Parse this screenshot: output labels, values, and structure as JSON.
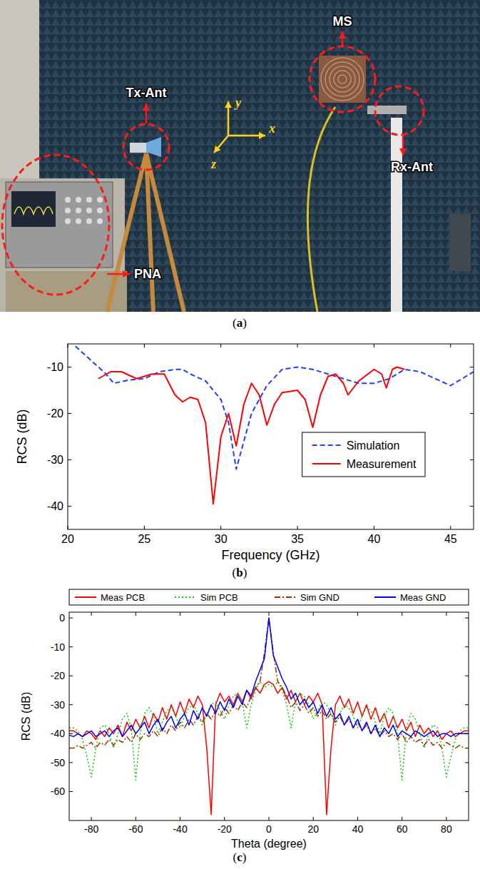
{
  "photo": {
    "labels": [
      "Tx-Ant",
      "MS",
      "Rx-Ant",
      "PNA"
    ],
    "axes": [
      "y",
      "z",
      "x"
    ],
    "panel": "(a)"
  },
  "chart_data": [
    {
      "type": "line",
      "panel": "(b)",
      "x_label": "Frequency (GHz)",
      "y_label": "RCS (dB)",
      "xlim": [
        20,
        46.5
      ],
      "xticks": [
        20,
        25,
        30,
        35,
        40,
        45
      ],
      "ylim": [
        -45,
        -5
      ],
      "yticks": [
        -40,
        -30,
        -20,
        -10
      ],
      "grid": false,
      "legend": "lower right",
      "series": [
        {
          "name": "Simulation",
          "color": "#1f3fff",
          "line_style": "dashed",
          "x": [
            20.5,
            21.5,
            22.5,
            23,
            24,
            25,
            26,
            27,
            27.5,
            28,
            29,
            30,
            30.5,
            31,
            31.5,
            32,
            33,
            34,
            35,
            36,
            37,
            38,
            39,
            40,
            41,
            42,
            43,
            44,
            45,
            46.5
          ],
          "values": [
            -5.5,
            -8.5,
            -11.5,
            -13.5,
            -12.8,
            -12.5,
            -11,
            -10.5,
            -10.5,
            -11.5,
            -13,
            -17,
            -22,
            -32,
            -26,
            -20,
            -14,
            -10.5,
            -10,
            -10.5,
            -11.5,
            -12.5,
            -13.5,
            -13.5,
            -12.5,
            -10.5,
            -11,
            -12.5,
            -14,
            -11
          ]
        },
        {
          "name": "Measurement",
          "color": "#ff0000",
          "line_style": "solid",
          "x": [
            22,
            22.8,
            23.5,
            24.5,
            25.5,
            26.3,
            27,
            27.5,
            28,
            28.5,
            29,
            29.5,
            30,
            30.5,
            31,
            31.5,
            32,
            32.5,
            33,
            33.5,
            34,
            35,
            35.5,
            36,
            36.5,
            37,
            37.5,
            38,
            38.3,
            39,
            40,
            40.5,
            40.8,
            41.2,
            41.5,
            42
          ],
          "values": [
            -12.5,
            -11,
            -11,
            -12.5,
            -11.5,
            -11.5,
            -16,
            -17.5,
            -16.5,
            -17,
            -22,
            -39.5,
            -25,
            -20,
            -27,
            -18,
            -13.5,
            -16,
            -22.5,
            -18,
            -15.5,
            -15,
            -17,
            -23,
            -16,
            -12,
            -11.5,
            -13.5,
            -16,
            -13,
            -10.5,
            -11.5,
            -14.5,
            -10.5,
            -10,
            -10.5
          ]
        }
      ]
    },
    {
      "type": "line",
      "panel": "(c)",
      "x_label": "Theta (degree)",
      "y_label": "RCS (dB)",
      "xlim": [
        -90,
        90
      ],
      "xticks": [
        -80,
        -60,
        -40,
        -20,
        0,
        20,
        40,
        60,
        80
      ],
      "ylim": [
        -70,
        2
      ],
      "yticks": [
        -60,
        -50,
        -40,
        -30,
        -20,
        -10,
        0
      ],
      "grid": false,
      "legend": "top",
      "x": [
        -90,
        -88,
        -86,
        -84,
        -82,
        -80,
        -78,
        -76,
        -74,
        -72,
        -70,
        -68,
        -66,
        -64,
        -62,
        -60,
        -58,
        -56,
        -54,
        -52,
        -50,
        -48,
        -46,
        -44,
        -42,
        -40,
        -38,
        -36,
        -34,
        -32,
        -30,
        -28,
        -26,
        -24,
        -22,
        -20,
        -18,
        -16,
        -14,
        -12,
        -10,
        -8,
        -6,
        -4,
        -2,
        0,
        2,
        4,
        6,
        8,
        10,
        12,
        14,
        16,
        18,
        20,
        22,
        24,
        26,
        28,
        30,
        32,
        34,
        36,
        38,
        40,
        42,
        44,
        46,
        48,
        50,
        52,
        54,
        56,
        58,
        60,
        62,
        64,
        66,
        68,
        70,
        72,
        74,
        76,
        78,
        80,
        82,
        84,
        86,
        88,
        90
      ],
      "series": [
        {
          "name": "Meas PCB",
          "color": "#ff0000",
          "line_style": "solid",
          "values": [
            -39,
            -39,
            -40,
            -41,
            -39,
            -40,
            -42,
            -39,
            -41,
            -38,
            -40,
            -37,
            -41,
            -36,
            -39,
            -35,
            -38,
            -34,
            -38,
            -33,
            -36,
            -31,
            -35,
            -30,
            -34,
            -29,
            -33,
            -28,
            -31,
            -27,
            -30,
            -45,
            -68,
            -30,
            -26,
            -29,
            -27,
            -30,
            -26,
            -29,
            -25,
            -28,
            -24,
            -26,
            -23,
            -22,
            -23,
            -26,
            -24,
            -28,
            -25,
            -29,
            -26,
            -30,
            -27,
            -29,
            -26,
            -30,
            -68,
            -45,
            -30,
            -27,
            -31,
            -28,
            -33,
            -29,
            -34,
            -30,
            -35,
            -31,
            -36,
            -33,
            -38,
            -34,
            -38,
            -35,
            -39,
            -36,
            -41,
            -37,
            -40,
            -38,
            -41,
            -39,
            -42,
            -40,
            -39,
            -41,
            -40,
            -39,
            -39
          ]
        },
        {
          "name": "Sim PCB",
          "color": "#00cc00",
          "line_style": "dotted",
          "values": [
            -38,
            -38,
            -39,
            -42,
            -48,
            -55,
            -45,
            -38,
            -37,
            -40,
            -45,
            -40,
            -35,
            -33,
            -38,
            -56,
            -40,
            -33,
            -31,
            -34,
            -40,
            -36,
            -32,
            -31,
            -34,
            -38,
            -34,
            -31,
            -30,
            -33,
            -37,
            -33,
            -30,
            -29,
            -32,
            -35,
            -30,
            -27,
            -26,
            -29,
            -38,
            -30,
            -25,
            -22,
            -24,
            -23,
            -24,
            -22,
            -25,
            -30,
            -38,
            -29,
            -26,
            -27,
            -30,
            -35,
            -32,
            -29,
            -30,
            -33,
            -37,
            -33,
            -30,
            -31,
            -34,
            -38,
            -34,
            -31,
            -32,
            -36,
            -40,
            -34,
            -31,
            -33,
            -40,
            -56,
            -38,
            -33,
            -35,
            -40,
            -45,
            -40,
            -37,
            -38,
            -45,
            -55,
            -48,
            -42,
            -39,
            -38,
            -38
          ]
        },
        {
          "name": "Sim GND",
          "color": "#993300",
          "line_style": "dashdot",
          "values": [
            -45,
            -45,
            -44,
            -45,
            -44,
            -43,
            -45,
            -43,
            -44,
            -42,
            -44,
            -42,
            -43,
            -41,
            -43,
            -40,
            -42,
            -40,
            -41,
            -39,
            -41,
            -38,
            -40,
            -37,
            -39,
            -36,
            -38,
            -35,
            -37,
            -34,
            -36,
            -33,
            -35,
            -32,
            -34,
            -31,
            -33,
            -30,
            -32,
            -29,
            -31,
            -27,
            -24,
            -22,
            -12,
            0,
            -12,
            -22,
            -24,
            -27,
            -31,
            -29,
            -32,
            -30,
            -33,
            -31,
            -34,
            -32,
            -35,
            -33,
            -36,
            -34,
            -37,
            -35,
            -38,
            -36,
            -39,
            -37,
            -40,
            -38,
            -41,
            -39,
            -41,
            -40,
            -42,
            -40,
            -43,
            -41,
            -43,
            -42,
            -44,
            -42,
            -44,
            -43,
            -45,
            -43,
            -44,
            -45,
            -44,
            -45,
            -45
          ]
        },
        {
          "name": "Meas GND",
          "color": "#0000ff",
          "line_style": "solid",
          "values": [
            -40.5,
            -41,
            -40,
            -41,
            -40,
            -39,
            -41,
            -40,
            -39,
            -41,
            -39,
            -38,
            -41,
            -39,
            -37,
            -40,
            -38,
            -36,
            -40,
            -37,
            -35,
            -39,
            -36,
            -34,
            -38,
            -35,
            -33,
            -37,
            -32,
            -35,
            -31,
            -34,
            -30,
            -33,
            -29,
            -32,
            -28,
            -31,
            -27,
            -30,
            -25,
            -27,
            -22,
            -18,
            -14,
            0,
            -13,
            -17,
            -21,
            -24,
            -28,
            -26,
            -30,
            -28,
            -31,
            -29,
            -33,
            -30,
            -34,
            -31,
            -35,
            -33,
            -37,
            -34,
            -38,
            -35,
            -39,
            -36,
            -40,
            -37,
            -41,
            -38,
            -40,
            -37,
            -41,
            -39,
            -40,
            -41,
            -39,
            -40,
            -41,
            -40,
            -39,
            -41,
            -40,
            -40,
            -41,
            -40,
            -40,
            -40,
            -40
          ]
        }
      ]
    }
  ]
}
